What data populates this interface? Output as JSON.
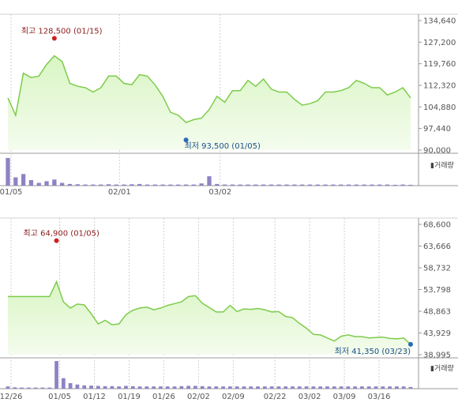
{
  "colors": {
    "line": "#7dcc4b",
    "area_top": "#d9f5c4",
    "area_bottom": "#f4fcee",
    "volume": "#8f82c4",
    "max_dot": "#cc2222",
    "min_dot": "#2a6bb8",
    "grid": "#d0d0d0",
    "axis": "#999999"
  },
  "chart_data": [
    {
      "type": "area",
      "volume_label": "거래량",
      "y_ticks": [
        "134,640",
        "127,200",
        "119,760",
        "112,320",
        "104,880",
        "97,440",
        "90,000"
      ],
      "ylim": [
        90000,
        134640
      ],
      "x_tick_labels": [
        "01/05",
        "02/01",
        "03/02"
      ],
      "x_tick_positions": [
        0,
        14,
        27
      ],
      "max_annotation": {
        "label": "최고",
        "value": "128,500",
        "date": "(01/15)",
        "y": 128500
      },
      "min_annotation": {
        "label": "최저",
        "value": "93,500",
        "date": "(01/05)",
        "y": 93500
      },
      "series": [
        {
          "values": [
            108000,
            102000,
            116500,
            115000,
            115500,
            119500,
            122500,
            120500,
            113000,
            112000,
            111500,
            110000,
            111500,
            115500,
            115500,
            113000,
            112500,
            116000,
            115500,
            112500,
            108500,
            103000,
            102000,
            99500,
            100500,
            101000,
            104000,
            108500,
            106500,
            110500,
            110500,
            114000,
            112000,
            114500,
            111000,
            110000,
            110000,
            107500,
            105500,
            106000,
            107000,
            110000,
            110000,
            110500,
            111500,
            114000,
            113000,
            111500,
            111500,
            109000,
            110000,
            111500,
            108000
          ],
          "volume": [
            100,
            30,
            42,
            20,
            10,
            16,
            22,
            10,
            6,
            5,
            4,
            4,
            4,
            5,
            4,
            4,
            5,
            6,
            4,
            4,
            4,
            4,
            4,
            4,
            4,
            8,
            34,
            6,
            4,
            4,
            4,
            4,
            4,
            4,
            4,
            4,
            4,
            4,
            4,
            4,
            4,
            4,
            4,
            4,
            4,
            4,
            4,
            4,
            4,
            4,
            3,
            4,
            3
          ]
        }
      ]
    },
    {
      "type": "area",
      "volume_label": "거래량",
      "y_ticks": [
        "68,600",
        "63,666",
        "58,732",
        "53,798",
        "48,863",
        "43,929",
        "38,995"
      ],
      "ylim": [
        38995,
        68600
      ],
      "x_tick_labels": [
        "12/26",
        "01/05",
        "01/12",
        "01/19",
        "01/26",
        "02/02",
        "02/09",
        "02/22",
        "03/02",
        "03/09",
        "03/16"
      ],
      "x_tick_positions": [
        0,
        7,
        12,
        17,
        22,
        27,
        32,
        38,
        43,
        48,
        53
      ],
      "max_annotation": {
        "label": "최고",
        "value": "64,900",
        "date": "(01/05)",
        "y": 64900
      },
      "min_annotation": {
        "label": "최저",
        "value": "41,350",
        "date": "(03/23)",
        "y": 41350
      },
      "series": [
        {
          "values": [
            52200,
            52200,
            52200,
            52200,
            52200,
            52200,
            52200,
            55600,
            51000,
            49600,
            50500,
            50300,
            48300,
            46000,
            46800,
            45800,
            46000,
            48100,
            49100,
            49600,
            49800,
            49200,
            49600,
            50200,
            50600,
            51000,
            52200,
            52400,
            50700,
            49700,
            48700,
            48700,
            50200,
            48800,
            49400,
            49300,
            49500,
            49200,
            48700,
            48800,
            47700,
            47400,
            46100,
            45000,
            43600,
            43500,
            42800,
            42100,
            43200,
            43500,
            43100,
            43100,
            42800,
            42900,
            43000,
            42700,
            42600,
            42800,
            41350
          ],
          "volume": [
            8,
            5,
            4,
            4,
            4,
            4,
            4,
            100,
            38,
            20,
            15,
            12,
            11,
            10,
            9,
            9,
            8,
            10,
            9,
            8,
            8,
            8,
            8,
            8,
            8,
            9,
            10,
            10,
            9,
            8,
            8,
            8,
            8,
            8,
            8,
            8,
            8,
            8,
            8,
            8,
            8,
            8,
            8,
            8,
            8,
            8,
            8,
            8,
            8,
            8,
            8,
            8,
            8,
            8,
            8,
            8,
            8,
            8,
            6
          ]
        }
      ]
    }
  ]
}
